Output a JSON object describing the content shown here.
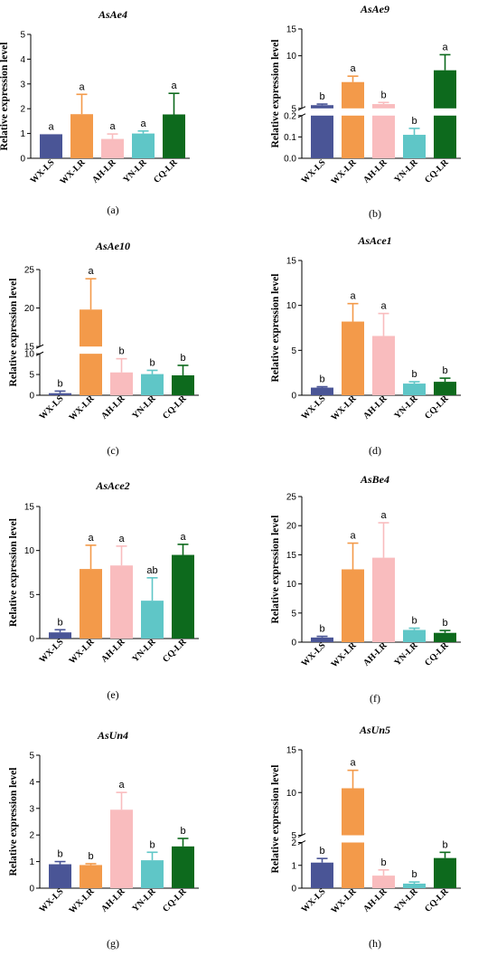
{
  "figure": {
    "categories": [
      "WX-LS",
      "WX-LR",
      "AH-LR",
      "YN-LR",
      "CQ-LR"
    ],
    "colors": [
      "#4a5596",
      "#f39a4a",
      "#f9bcbe",
      "#5fc6c7",
      "#0d6a1d"
    ]
  },
  "chart_data": [
    {
      "type": "bar",
      "title": "AsAe4",
      "ylabel": "Relative expression level",
      "panel_label": "(a)",
      "categories": [
        "WX-LS",
        "WX-LR",
        "AH-LR",
        "YN-LR",
        "CQ-LR"
      ],
      "values": [
        0.97,
        1.78,
        0.78,
        1.0,
        1.77
      ],
      "errors": [
        0.0,
        0.8,
        0.2,
        0.1,
        0.85
      ],
      "significance": [
        "a",
        "a",
        "a",
        "a",
        "a"
      ],
      "ylim": [
        0,
        5
      ],
      "yticks": [
        0,
        1,
        2,
        3,
        4,
        5
      ]
    },
    {
      "type": "bar",
      "title": "AsAe9",
      "ylabel": "Relative expression level",
      "panel_label": "(b)",
      "categories": [
        "WX-LS",
        "WX-LR",
        "AH-LR",
        "YN-LR",
        "CQ-LR"
      ],
      "values": [
        0.8,
        5.1,
        1.0,
        0.11,
        7.3
      ],
      "errors": [
        0.2,
        1.1,
        0.3,
        0.03,
        2.9
      ],
      "significance": [
        "b",
        "a",
        "b",
        "b",
        "a"
      ],
      "broken_axis": {
        "lower": [
          0,
          0.2
        ],
        "upper": [
          0.2,
          15
        ]
      },
      "yticks_lower": [
        0.0,
        0.1,
        0.2
      ],
      "yticks_upper": [
        5,
        10,
        15
      ]
    },
    {
      "type": "bar",
      "title": "AsAe10",
      "ylabel": "Relative expression level",
      "panel_label": "(c)",
      "categories": [
        "WX-LS",
        "WX-LR",
        "AH-LR",
        "YN-LR",
        "CQ-LR"
      ],
      "values": [
        0.5,
        19.8,
        5.5,
        5.1,
        4.8
      ],
      "errors": [
        0.5,
        4.0,
        3.3,
        0.9,
        2.4
      ],
      "significance": [
        "b",
        "a",
        "b",
        "b",
        "b"
      ],
      "broken_axis": {
        "lower": [
          0,
          10
        ],
        "upper": [
          15,
          25
        ]
      },
      "yticks_lower": [
        0,
        5,
        10
      ],
      "yticks_upper": [
        15,
        20,
        25
      ]
    },
    {
      "type": "bar",
      "title": "AsAce1",
      "ylabel": "Relative expression level",
      "panel_label": "(d)",
      "categories": [
        "WX-LS",
        "WX-LR",
        "AH-LR",
        "YN-LR",
        "CQ-LR"
      ],
      "values": [
        0.85,
        8.2,
        6.6,
        1.3,
        1.5
      ],
      "errors": [
        0.1,
        2.0,
        2.5,
        0.2,
        0.4
      ],
      "significance": [
        "b",
        "a",
        "a",
        "b",
        "b"
      ],
      "ylim": [
        0,
        15
      ],
      "yticks": [
        0,
        5,
        10,
        15
      ]
    },
    {
      "type": "bar",
      "title": "AsAce2",
      "ylabel": "Relative expression level",
      "panel_label": "(e)",
      "categories": [
        "WX-LS",
        "WX-LR",
        "AH-LR",
        "YN-LR",
        "CQ-LR"
      ],
      "values": [
        0.7,
        7.9,
        8.3,
        4.3,
        9.5
      ],
      "errors": [
        0.3,
        2.7,
        2.2,
        2.6,
        1.2
      ],
      "significance": [
        "b",
        "a",
        "a",
        "ab",
        "a"
      ],
      "ylim": [
        0,
        15
      ],
      "yticks": [
        0,
        5,
        10,
        15
      ]
    },
    {
      "type": "bar",
      "title": "AsBe4",
      "ylabel": "Relative expression level",
      "panel_label": "(f)",
      "categories": [
        "WX-LS",
        "WX-LR",
        "AH-LR",
        "YN-LR",
        "CQ-LR"
      ],
      "values": [
        0.8,
        12.5,
        14.5,
        2.1,
        1.6
      ],
      "errors": [
        0.2,
        4.5,
        6.0,
        0.3,
        0.4
      ],
      "significance": [
        "b",
        "a",
        "a",
        "b",
        "b"
      ],
      "ylim": [
        0,
        25
      ],
      "yticks": [
        0,
        5,
        10,
        15,
        20,
        25
      ]
    },
    {
      "type": "bar",
      "title": "AsUn4",
      "ylabel": "Relative expression level",
      "panel_label": "(g)",
      "categories": [
        "WX-LS",
        "WX-LR",
        "AH-LR",
        "YN-LR",
        "CQ-LR"
      ],
      "values": [
        0.9,
        0.87,
        2.95,
        1.05,
        1.57
      ],
      "errors": [
        0.1,
        0.05,
        0.65,
        0.3,
        0.3
      ],
      "significance": [
        "b",
        "b",
        "a",
        "b",
        "b"
      ],
      "ylim": [
        0,
        5
      ],
      "yticks": [
        0,
        1,
        2,
        3,
        4,
        5
      ]
    },
    {
      "type": "bar",
      "title": "AsUn5",
      "ylabel": "Relative expression level",
      "panel_label": "(h)",
      "categories": [
        "WX-LS",
        "WX-LR",
        "AH-LR",
        "YN-LR",
        "CQ-LR"
      ],
      "values": [
        1.12,
        10.5,
        0.55,
        0.2,
        1.32
      ],
      "errors": [
        0.18,
        2.1,
        0.25,
        0.07,
        0.25
      ],
      "significance": [
        "b",
        "a",
        "b",
        "b",
        "b"
      ],
      "broken_axis": {
        "lower": [
          0,
          2
        ],
        "upper": [
          5,
          15
        ]
      },
      "yticks_lower": [
        0,
        1,
        2
      ],
      "yticks_upper": [
        5,
        10,
        15
      ]
    }
  ]
}
